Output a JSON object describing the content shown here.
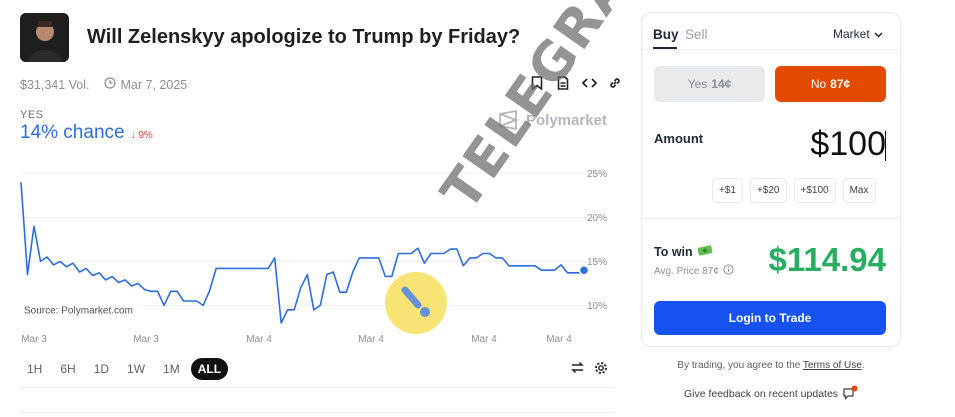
{
  "market": {
    "title": "Will Zelenskyy apologize to Trump by Friday?",
    "volume": "$31,341 Vol.",
    "date": "Mar 7, 2025",
    "outcome_label": "YES",
    "chance": "14% chance",
    "change": "9%",
    "source": "Source: Polymarket.com",
    "brand": "Polymarket"
  },
  "header_icons": [
    "bookmark-icon",
    "document-icon",
    "code-icon",
    "link-icon"
  ],
  "chart_data": {
    "type": "line",
    "x_tick_labels": [
      "Mar 3",
      "Mar 3",
      "Mar 4",
      "Mar 4",
      "Mar 4",
      "Mar 4"
    ],
    "y_tick_labels": [
      "10%",
      "15%",
      "20%",
      "25%"
    ],
    "ylim": [
      8,
      28
    ],
    "series": [
      {
        "color": "#2d6de0",
        "values": [
          24,
          13.5,
          19,
          15,
          15.5,
          14.6,
          15,
          14.4,
          14.8,
          13.8,
          14.2,
          13.4,
          13.7,
          12.9,
          13.3,
          12.6,
          12.9,
          12.2,
          12.5,
          11.8,
          11.6,
          11.6,
          10,
          11.6,
          11.6,
          10.5,
          10.5,
          10.5,
          10,
          11.7,
          14.2,
          14.2,
          14.2,
          14.2,
          14.2,
          14.2,
          14.2,
          14.2,
          14.2,
          15.4,
          8,
          9.5,
          9.5,
          12,
          13.5,
          9.5,
          10,
          13.5,
          13.8,
          11.5,
          11.5,
          13.8,
          15.4,
          15.4,
          15.4,
          15.4,
          13.3,
          13.3,
          15.9,
          15.9,
          15.9,
          16.5,
          14.8,
          15.9,
          15.9,
          15.9,
          16.4,
          16.4,
          14.5,
          15.4,
          15.4,
          15.9,
          15.9,
          15.4,
          15.4,
          14.5,
          14.5,
          14.5,
          14.5,
          14.5,
          14,
          14,
          14,
          14.6,
          13.7,
          13.7,
          13.7,
          14.1
        ],
        "current": 14
      }
    ]
  },
  "timeframes": [
    "1H",
    "6H",
    "1D",
    "1W",
    "1M",
    "ALL"
  ],
  "active_timeframe": "ALL",
  "trade": {
    "tab_buy": "Buy",
    "tab_sell": "Sell",
    "order_type": "Market",
    "yes_label": "Yes",
    "yes_price": "14¢",
    "no_label": "No",
    "no_price": "87¢",
    "amount_label": "Amount",
    "amount": "$100",
    "quick_amounts": [
      "+$1",
      "+$20",
      "+$100",
      "Max"
    ],
    "to_win_label": "To win",
    "avg_price": "Avg. Price 87¢",
    "to_win_value": "$114.94",
    "login_button": "Login to Trade",
    "terms_prefix": "By trading, you agree to the",
    "terms_link": "Terms of Use",
    "terms_suffix": ".",
    "feedback": "Give feedback on recent updates"
  },
  "watermark": {
    "text": "TELEGRAF"
  },
  "colors": {
    "accent_blue": "#2d6de0",
    "no_orange": "#e44b02",
    "win_green": "#27ae60",
    "login_blue": "#1652f0",
    "watermark_yellow": "#f7df5e"
  }
}
